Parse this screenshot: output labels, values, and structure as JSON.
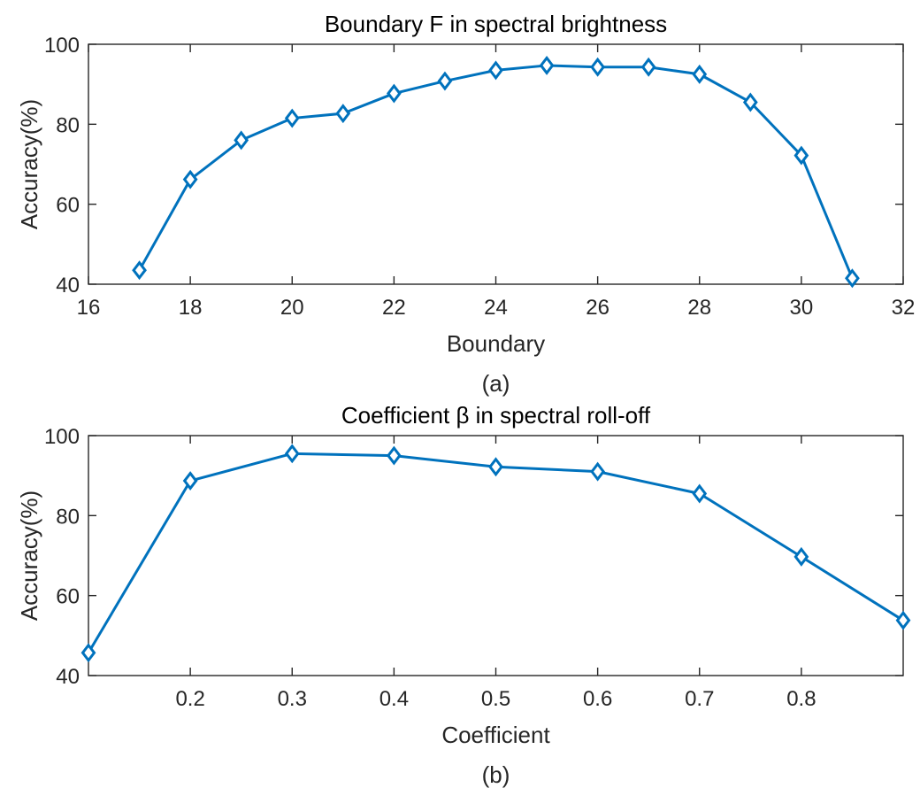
{
  "chart_data": [
    {
      "type": "line",
      "title": "Boundary F in spectral brightness",
      "xlabel": "Boundary",
      "ylabel": "Accuracy(%)",
      "caption": "(a)",
      "xlim": [
        16,
        32
      ],
      "ylim": [
        40,
        100
      ],
      "xticks": [
        16,
        18,
        20,
        22,
        24,
        26,
        28,
        30,
        32
      ],
      "yticks": [
        40,
        60,
        80,
        100
      ],
      "grid": false,
      "marker": "diamond",
      "color": "#0072BD",
      "x": [
        17,
        18,
        19,
        20,
        21,
        22,
        23,
        24,
        25,
        26,
        27,
        28,
        29,
        30,
        31
      ],
      "y": [
        43.5,
        66.2,
        76,
        81.5,
        82.7,
        87.7,
        90.8,
        93.5,
        94.7,
        94.3,
        94.3,
        92.5,
        85.5,
        72.2,
        41.5
      ]
    },
    {
      "type": "line",
      "title": "Coefficient β in spectral roll-off",
      "xlabel": "Coefficient",
      "ylabel": "Accuracy(%)",
      "caption": "(b)",
      "xlim": [
        0.1,
        0.9
      ],
      "ylim": [
        40,
        100
      ],
      "xticks": [
        0.2,
        0.3,
        0.4,
        0.5,
        0.6,
        0.7,
        0.8
      ],
      "yticks": [
        40,
        60,
        80,
        100
      ],
      "grid": false,
      "marker": "diamond",
      "color": "#0072BD",
      "x": [
        0.1,
        0.2,
        0.3,
        0.4,
        0.5,
        0.6,
        0.7,
        0.8,
        0.9
      ],
      "y": [
        45.7,
        88.7,
        95.5,
        95,
        92.2,
        91,
        85.5,
        69.7,
        53.8
      ]
    }
  ]
}
